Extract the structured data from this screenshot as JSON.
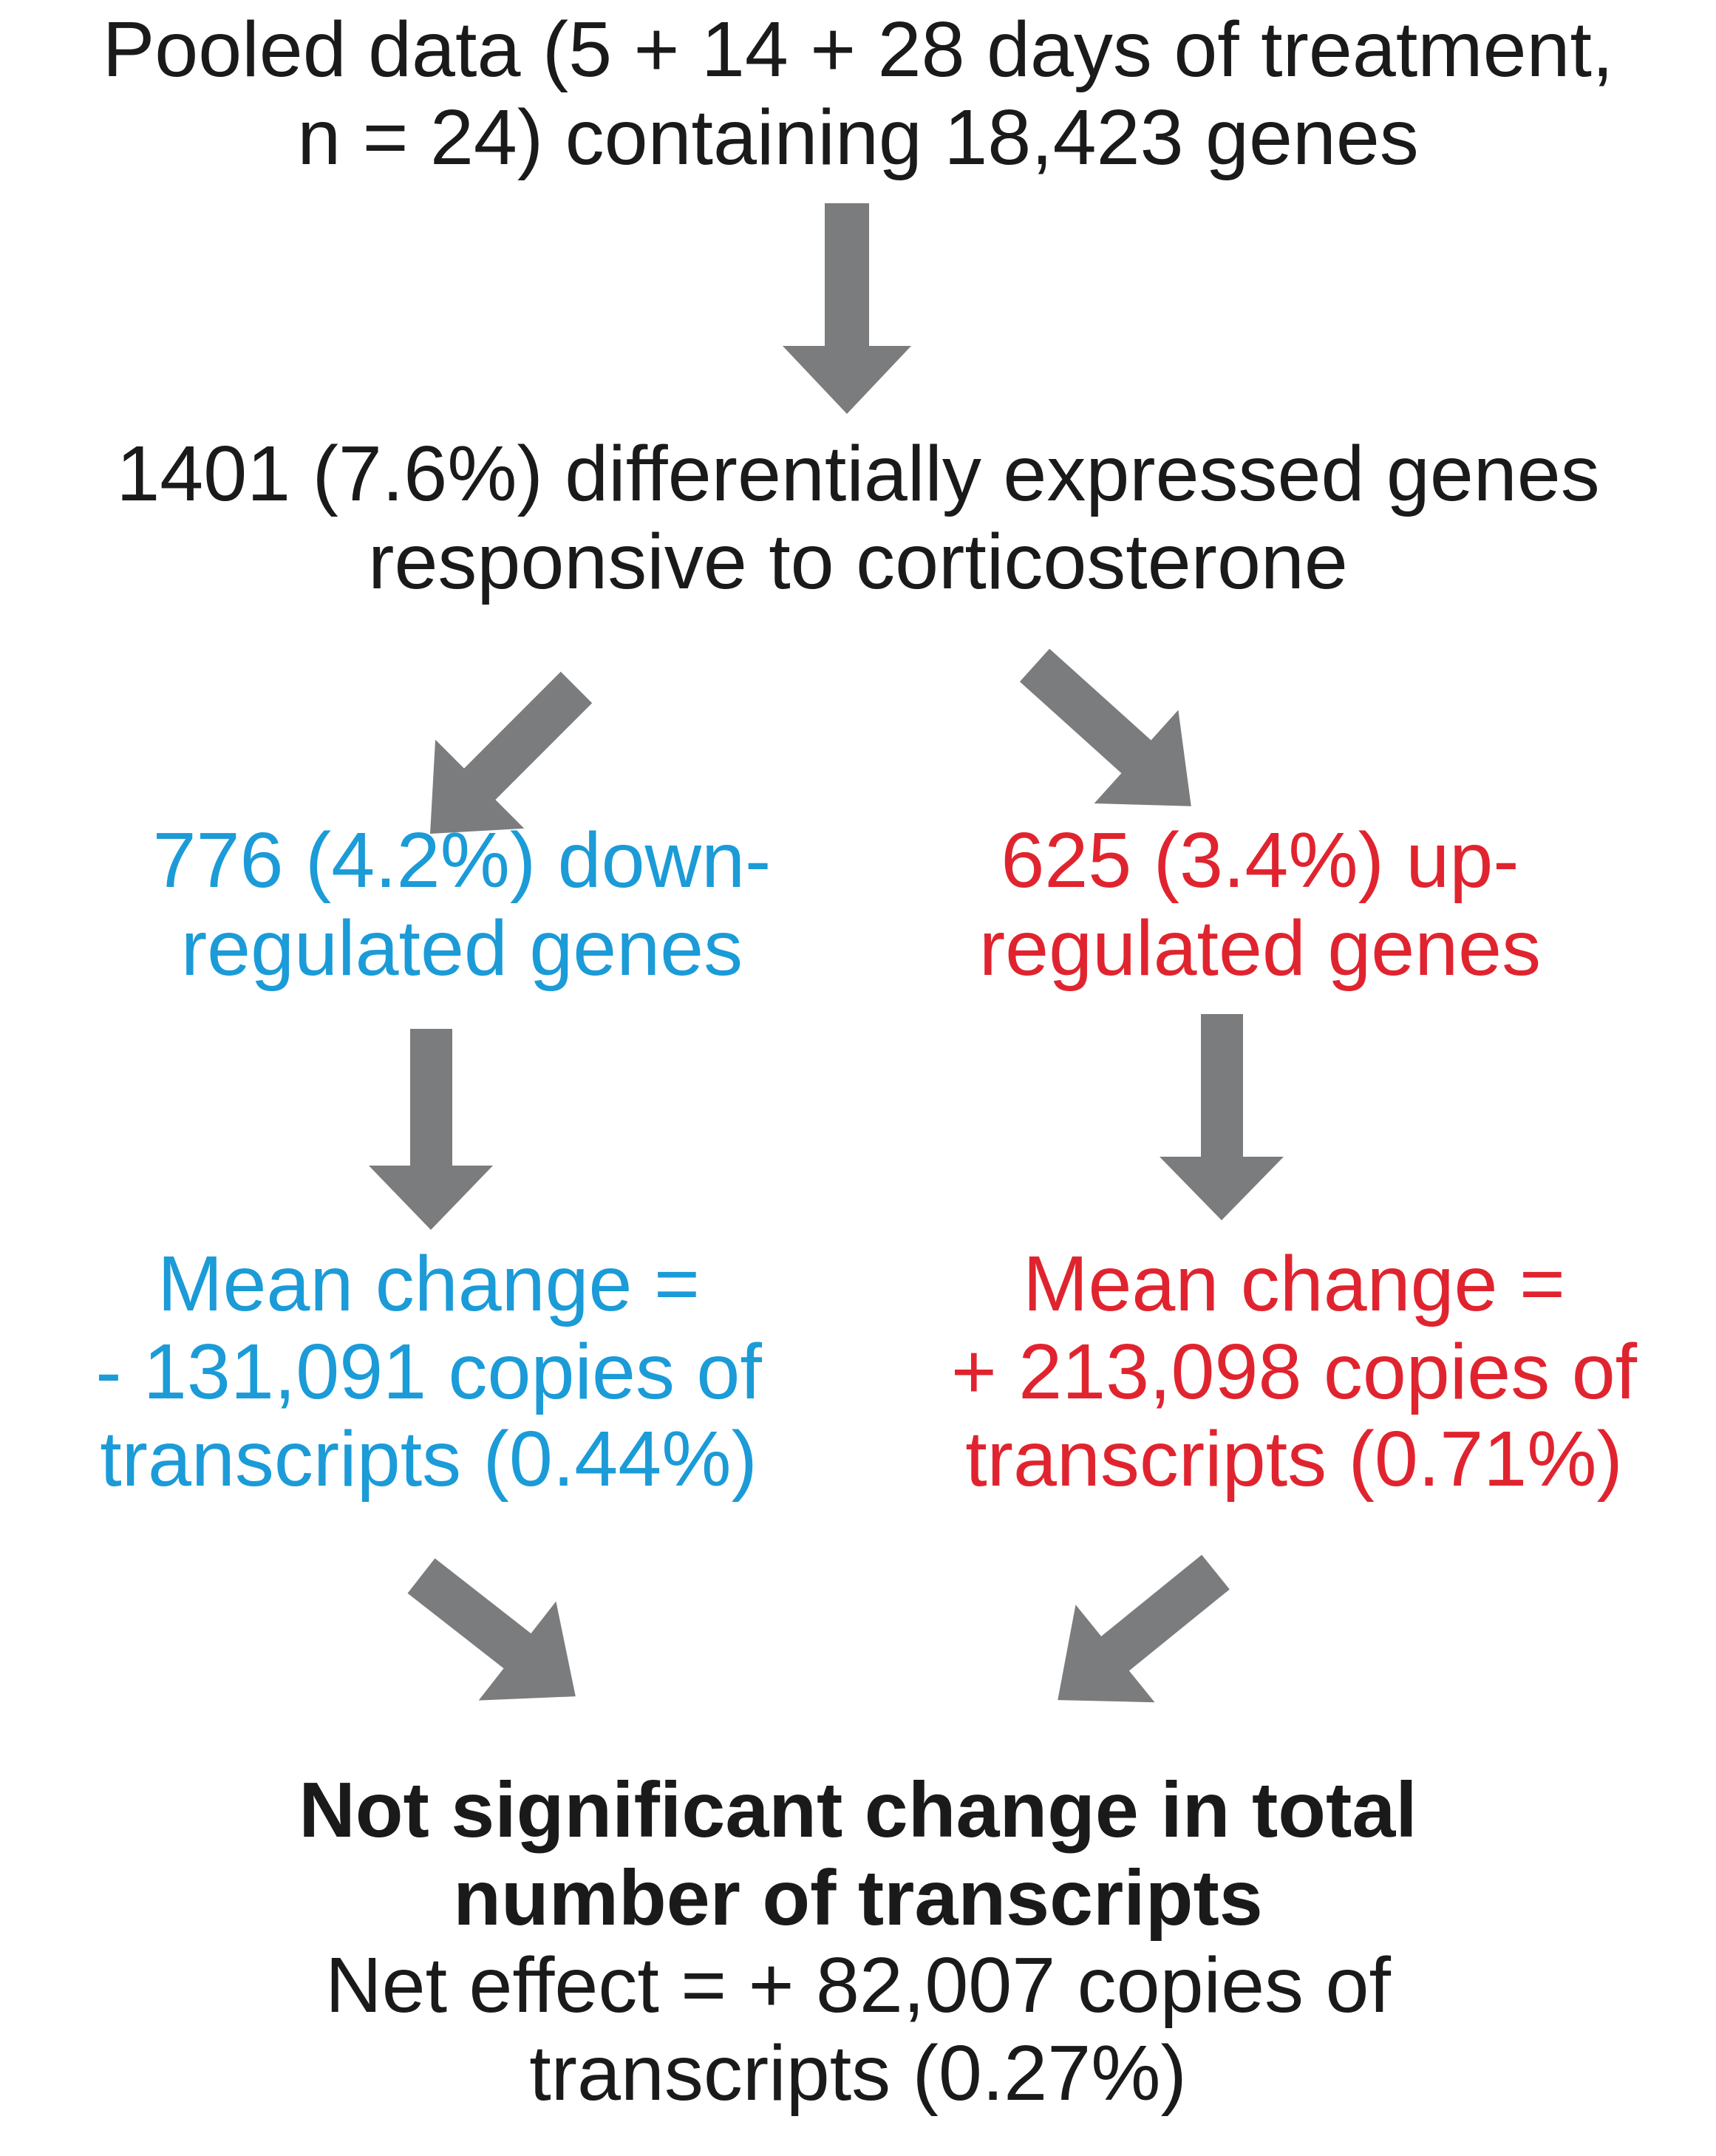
{
  "pooled": {
    "line1": "Pooled data (5 + 14 + 28 days of treatment,",
    "line2": "n = 24) containing 18,423 genes"
  },
  "differential": {
    "line1": "1401 (7.6%) differentially expressed genes",
    "line2": "responsive to corticosterone"
  },
  "down": {
    "line1": "776 (4.2%) down-",
    "line2": "regulated genes",
    "mean_line1": "Mean change =",
    "mean_line2": "- 131,091 copies of",
    "mean_line3": "transcripts (0.44%)",
    "color": "#1b9bd7"
  },
  "up": {
    "line1": "625 (3.4%) up-",
    "line2": "regulated genes",
    "mean_line1": "Mean change =",
    "mean_line2": "+ 213,098 copies of",
    "mean_line3": "transcripts (0.71%)",
    "color": "#e0242f"
  },
  "conclusion": {
    "line1": "Not significant change in total",
    "line2": "number of transcripts",
    "line3": "Net effect = + 82,007 copies of",
    "line4": "transcripts (0.27%)"
  },
  "arrow_color": "#7a7c7e"
}
